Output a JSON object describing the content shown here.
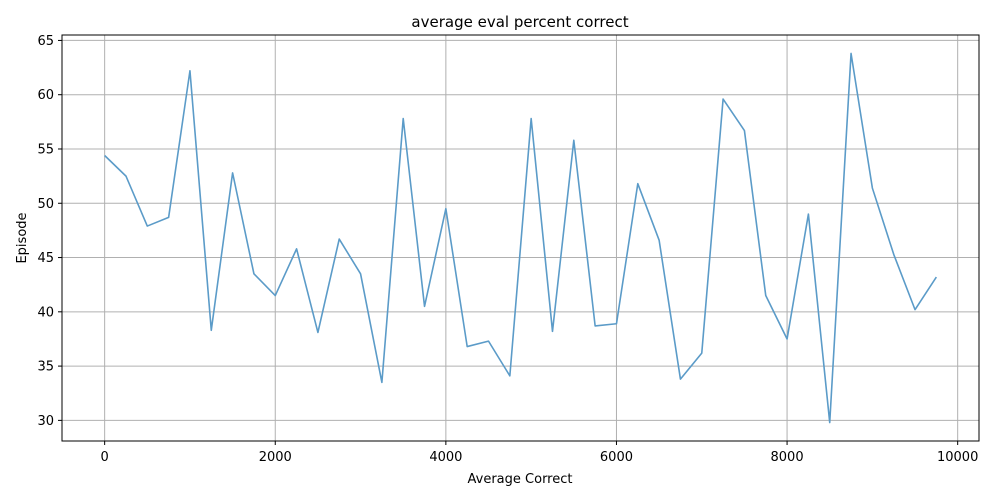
{
  "chart_data": {
    "type": "line",
    "title": "average eval percent correct",
    "xlabel": "Average Correct",
    "ylabel": "Episode",
    "xlim": [
      -500,
      10250
    ],
    "ylim": [
      28.1,
      65.5
    ],
    "xticks": [
      0,
      2000,
      4000,
      6000,
      8000,
      10000
    ],
    "yticks": [
      30,
      35,
      40,
      45,
      50,
      55,
      60,
      65
    ],
    "grid": true,
    "series": [
      {
        "color": "#5b9bc8",
        "x": [
          0,
          250,
          500,
          750,
          1000,
          1250,
          1500,
          1750,
          2000,
          2250,
          2500,
          2750,
          3000,
          3250,
          3500,
          3750,
          4000,
          4250,
          4500,
          4750,
          5000,
          5250,
          5500,
          5750,
          6000,
          6250,
          6500,
          6750,
          7000,
          7250,
          7500,
          7750,
          8000,
          8250,
          8500,
          8750,
          9000,
          9250,
          9500,
          9750
        ],
        "y": [
          54.4,
          52.5,
          47.9,
          48.7,
          62.2,
          38.3,
          52.8,
          43.5,
          41.5,
          45.8,
          38.1,
          46.7,
          43.5,
          33.5,
          57.8,
          40.5,
          49.5,
          36.8,
          37.3,
          34.1,
          57.8,
          38.2,
          55.8,
          38.7,
          38.9,
          51.8,
          46.6,
          33.8,
          36.2,
          59.6,
          56.7,
          41.5,
          37.5,
          49.0,
          29.8,
          63.8,
          51.4,
          45.3,
          40.2,
          43.2
        ]
      }
    ]
  }
}
